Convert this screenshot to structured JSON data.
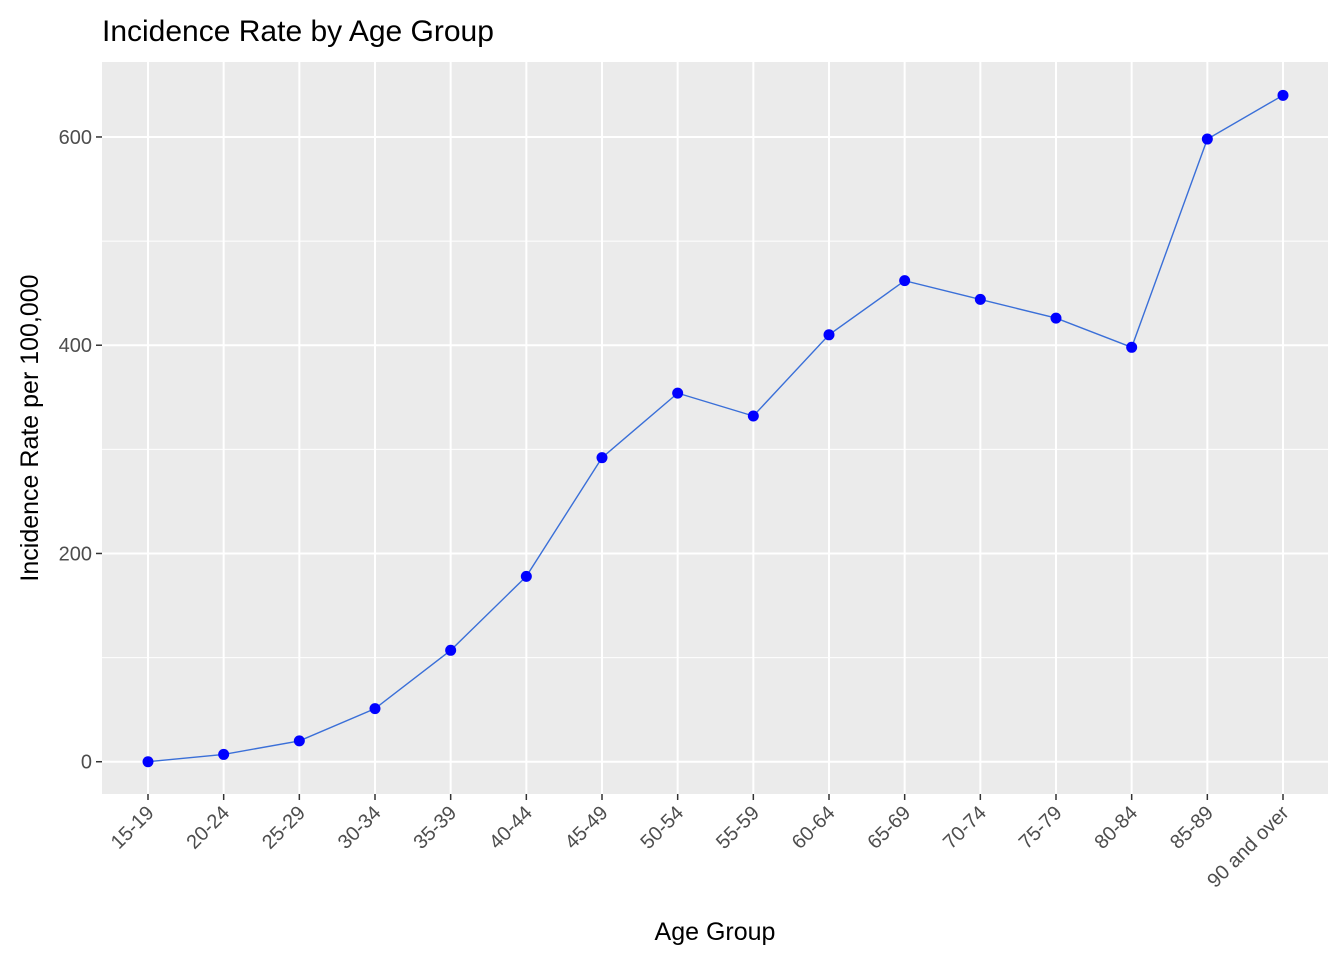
{
  "chart_data": {
    "type": "line",
    "title": "Incidence Rate by Age Group",
    "xlabel": "Age Group",
    "ylabel": "Incidence Rate per 100,000",
    "categories": [
      "15-19",
      "20-24",
      "25-29",
      "30-34",
      "35-39",
      "40-44",
      "45-49",
      "50-54",
      "55-59",
      "60-64",
      "65-69",
      "70-74",
      "75-79",
      "80-84",
      "85-89",
      "90 and over"
    ],
    "values": [
      0,
      7,
      20,
      51,
      107,
      178,
      292,
      354,
      332,
      410,
      462,
      444,
      426,
      398,
      598,
      640
    ],
    "ylim": [
      -31,
      672
    ],
    "yticks": [
      0,
      200,
      400,
      600
    ],
    "grid": true,
    "legend": "none",
    "colors": {
      "line": "#3a6fd8",
      "point": "#0000ff",
      "panel": "#ebebeb",
      "grid": "#ffffff"
    }
  }
}
